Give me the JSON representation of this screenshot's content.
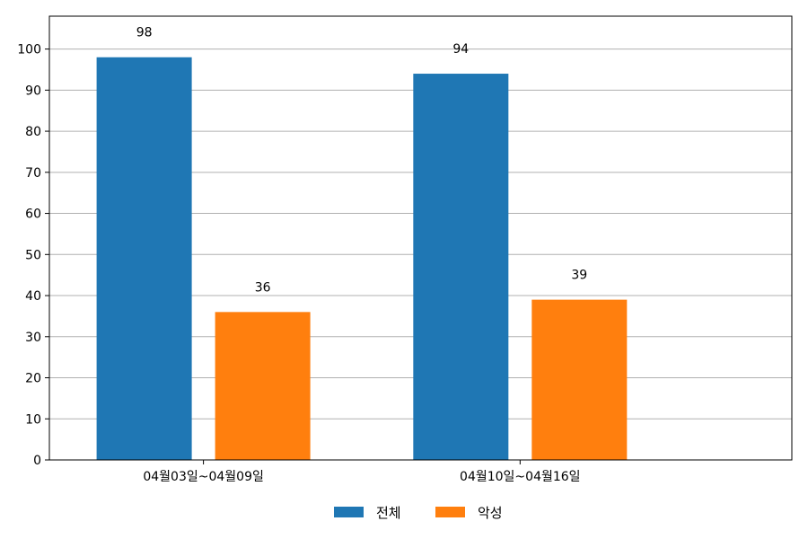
{
  "chart_data": {
    "type": "bar",
    "title": "",
    "xlabel": "",
    "ylabel": "",
    "categories": [
      "04월03일~04월09일",
      "04월10일~04월16일"
    ],
    "series": [
      {
        "name": "전체",
        "values": [
          98,
          94
        ],
        "color": "#1f77b4"
      },
      {
        "name": "악성",
        "values": [
          36,
          39
        ],
        "color": "#ff7f0e"
      }
    ],
    "ylim": [
      0,
      108
    ],
    "yticks": [
      0,
      10,
      20,
      30,
      40,
      50,
      60,
      70,
      80,
      90,
      100
    ],
    "grid": "horizontal",
    "legend_position": "bottom-center",
    "show_data_labels": true
  }
}
